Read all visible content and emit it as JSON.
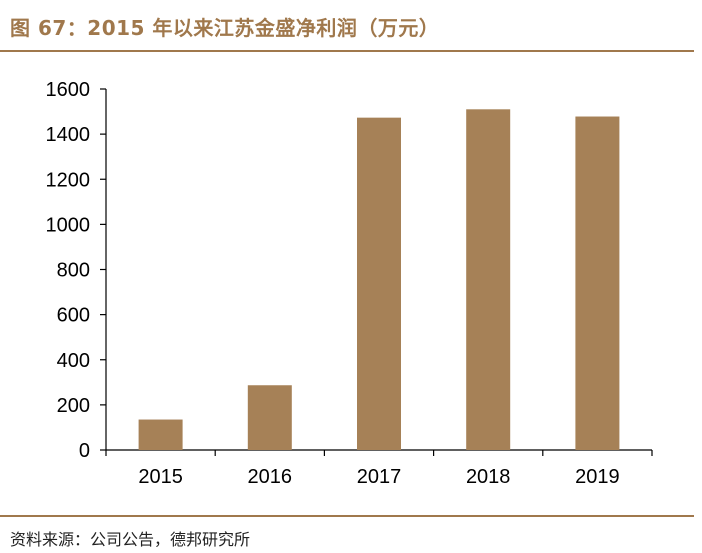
{
  "header": {
    "title": "图 67：2015 年以来江苏金盛净利润（万元）"
  },
  "footer": {
    "source": "资料来源：公司公告，德邦研究所"
  },
  "colors": {
    "bar": "#a68157",
    "accent": "#a0784c",
    "axis": "#000000"
  },
  "chart_data": {
    "type": "bar",
    "title": "",
    "xlabel": "",
    "ylabel": "",
    "categories": [
      "2015",
      "2016",
      "2017",
      "2018",
      "2019"
    ],
    "values": [
      135,
      287,
      1473,
      1510,
      1478
    ],
    "ylim": [
      0,
      1600
    ],
    "yticks": [
      0,
      200,
      400,
      600,
      800,
      1000,
      1200,
      1400,
      1600
    ],
    "grid": false,
    "legend": "none"
  }
}
